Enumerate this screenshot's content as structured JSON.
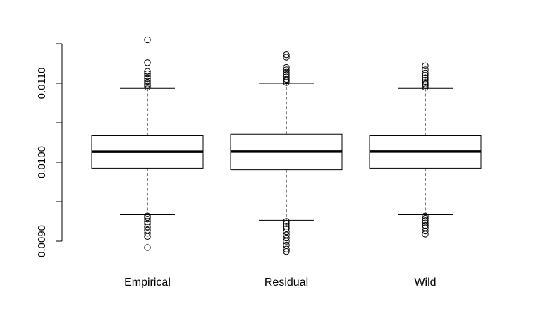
{
  "chart_data": {
    "type": "boxplot",
    "title": "",
    "xlabel": "",
    "ylabel": "",
    "ylim": [
      0.0088,
      0.0114
    ],
    "yticks": [
      {
        "value": 0.009,
        "label": "0.0090"
      },
      {
        "value": 0.0095,
        "label": ""
      },
      {
        "value": 0.01,
        "label": "0.0100"
      },
      {
        "value": 0.0105,
        "label": ""
      },
      {
        "value": 0.011,
        "label": "0.0110"
      },
      {
        "value": 0.0115,
        "label": ""
      }
    ],
    "categories": [
      "Empirical",
      "Residual",
      "Wild"
    ],
    "boxes": [
      {
        "label": "Empirical",
        "whisker_low": 0.009335,
        "q1": 0.009925,
        "median": 0.010133,
        "q3": 0.010335,
        "whisker_high": 0.010935,
        "outliers_high": [
          0.01095,
          0.01097,
          0.01099,
          0.01101,
          0.01103,
          0.01106,
          0.01109,
          0.01112,
          0.01115,
          0.01126,
          0.01155
        ],
        "outliers_low": [
          0.00932,
          0.0093,
          0.00928,
          0.00925,
          0.00922,
          0.00918,
          0.00914,
          0.0091,
          0.00906,
          0.00892
        ]
      },
      {
        "label": "Residual",
        "whisker_low": 0.009265,
        "q1": 0.009905,
        "median": 0.010135,
        "q3": 0.010355,
        "whisker_high": 0.011,
        "outliers_high": [
          0.01101,
          0.01103,
          0.01105,
          0.01108,
          0.01111,
          0.01114,
          0.01117,
          0.0112,
          0.01133,
          0.01136
        ],
        "outliers_low": [
          0.00925,
          0.00922,
          0.00919,
          0.00916,
          0.00912,
          0.00908,
          0.00904,
          0.009,
          0.00895,
          0.0089,
          0.00887
        ]
      },
      {
        "label": "Wild",
        "whisker_low": 0.009335,
        "q1": 0.009925,
        "median": 0.010135,
        "q3": 0.010335,
        "whisker_high": 0.010935,
        "outliers_high": [
          0.01095,
          0.01097,
          0.01099,
          0.01101,
          0.01104,
          0.01107,
          0.0111,
          0.01113,
          0.01117,
          0.01122
        ],
        "outliers_low": [
          0.00932,
          0.00929,
          0.00926,
          0.00923,
          0.0092,
          0.00917,
          0.00913,
          0.00909
        ]
      }
    ],
    "grid": false,
    "legend": "none"
  }
}
